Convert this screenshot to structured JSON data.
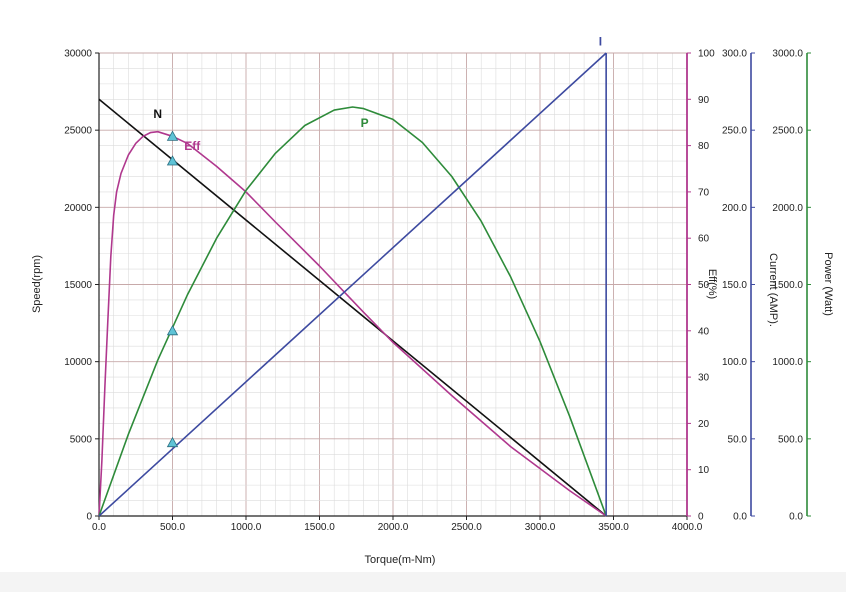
{
  "chart_data": {
    "type": "line",
    "xlabel": "Torque(m-Nm)",
    "x_axis": {
      "range": [
        0,
        4000
      ],
      "ticks": [
        0,
        500,
        1000,
        1500,
        2000,
        2500,
        3000,
        3500,
        4000
      ],
      "tick_labels": [
        "0.0",
        "500.0",
        "1000.0",
        "1500.0",
        "2000.0",
        "2500.0",
        "3000.0",
        "3500.0",
        "4000.0"
      ]
    },
    "y_axes": [
      {
        "id": "speed",
        "label": "Speed(rpm)",
        "range": [
          0,
          30000
        ],
        "ticks": [
          0,
          5000,
          10000,
          15000,
          20000,
          25000,
          30000
        ],
        "tick_labels": [
          "0",
          "5000",
          "10000",
          "15000",
          "20000",
          "25000",
          "30000"
        ],
        "color": "#222222"
      },
      {
        "id": "eff",
        "label": "Eff(%)",
        "range": [
          0,
          100
        ],
        "ticks": [
          0,
          10,
          20,
          30,
          40,
          50,
          60,
          70,
          80,
          90,
          100
        ],
        "tick_labels": [
          "0",
          "10",
          "20",
          "30",
          "40",
          "50",
          "60",
          "70",
          "80",
          "90",
          "100"
        ],
        "color": "#b0388e"
      },
      {
        "id": "current",
        "label": "Current (AMP).",
        "range": [
          0,
          300
        ],
        "ticks": [
          0,
          50,
          100,
          150,
          200,
          250,
          300
        ],
        "tick_labels": [
          "0.0",
          "50.0",
          "100.0",
          "150.0",
          "200.0",
          "250.0",
          "300.0"
        ],
        "color": "#3d4aa0"
      },
      {
        "id": "power",
        "label": "Power (Watt)",
        "range": [
          0,
          3000
        ],
        "ticks": [
          0,
          500,
          1000,
          1500,
          2000,
          2500,
          3000
        ],
        "tick_labels": [
          "0.0",
          "500.0",
          "1000.0",
          "1500.0",
          "2000.0",
          "2500.0",
          "3000.0"
        ],
        "color": "#2e8b3a"
      }
    ],
    "grid": true,
    "series": [
      {
        "name": "N",
        "axis": "speed",
        "color": "#111111",
        "x": [
          0,
          3450
        ],
        "y": [
          27000,
          0
        ]
      },
      {
        "name": "Eff",
        "axis": "eff",
        "color": "#b0388e",
        "x": [
          0,
          20,
          40,
          60,
          80,
          100,
          120,
          150,
          200,
          250,
          300,
          350,
          400,
          500,
          600,
          800,
          1000,
          1200,
          1500,
          1800,
          2000,
          2400,
          2800,
          3200,
          3450
        ],
        "y": [
          0,
          12,
          28,
          42,
          56,
          65,
          70,
          74,
          78,
          80.5,
          82,
          82.8,
          83,
          82,
          80.5,
          75.5,
          70,
          63.5,
          54,
          44,
          37.5,
          26,
          15,
          5.5,
          0
        ]
      },
      {
        "name": "P",
        "axis": "power",
        "color": "#2e8b3a",
        "x": [
          0,
          200,
          400,
          600,
          800,
          1000,
          1200,
          1400,
          1600,
          1725,
          1800,
          2000,
          2200,
          2400,
          2600,
          2800,
          3000,
          3200,
          3450
        ],
        "y": [
          0,
          530,
          1010,
          1430,
          1800,
          2110,
          2350,
          2530,
          2630,
          2650,
          2640,
          2570,
          2420,
          2200,
          1910,
          1550,
          1130,
          650,
          0
        ]
      },
      {
        "name": "I",
        "axis": "current",
        "color": "#3d4aa0",
        "x": [
          0,
          3450
        ],
        "y": [
          0,
          300
        ]
      }
    ],
    "markers": [
      {
        "axis": "eff",
        "x": 500,
        "y": 82
      },
      {
        "axis": "speed",
        "x": 500,
        "y": 23000
      },
      {
        "axis": "power",
        "x": 500,
        "y": 1200
      },
      {
        "axis": "current",
        "x": 500,
        "y": 47.5
      }
    ],
    "series_labels": [
      {
        "text": "N",
        "color": "#111111",
        "at": {
          "x": 370,
          "y": 25800,
          "axis": "speed"
        }
      },
      {
        "text": "Eff",
        "color": "#b0388e",
        "at": {
          "x": 580,
          "y": 79,
          "axis": "eff"
        }
      },
      {
        "text": "P",
        "color": "#2e8b3a",
        "at": {
          "x": 1780,
          "y": 2520,
          "axis": "power"
        }
      },
      {
        "text": "I",
        "color": "#3d4aa0",
        "at": {
          "x": 3400,
          "y": 305,
          "axis": "current"
        }
      }
    ]
  }
}
